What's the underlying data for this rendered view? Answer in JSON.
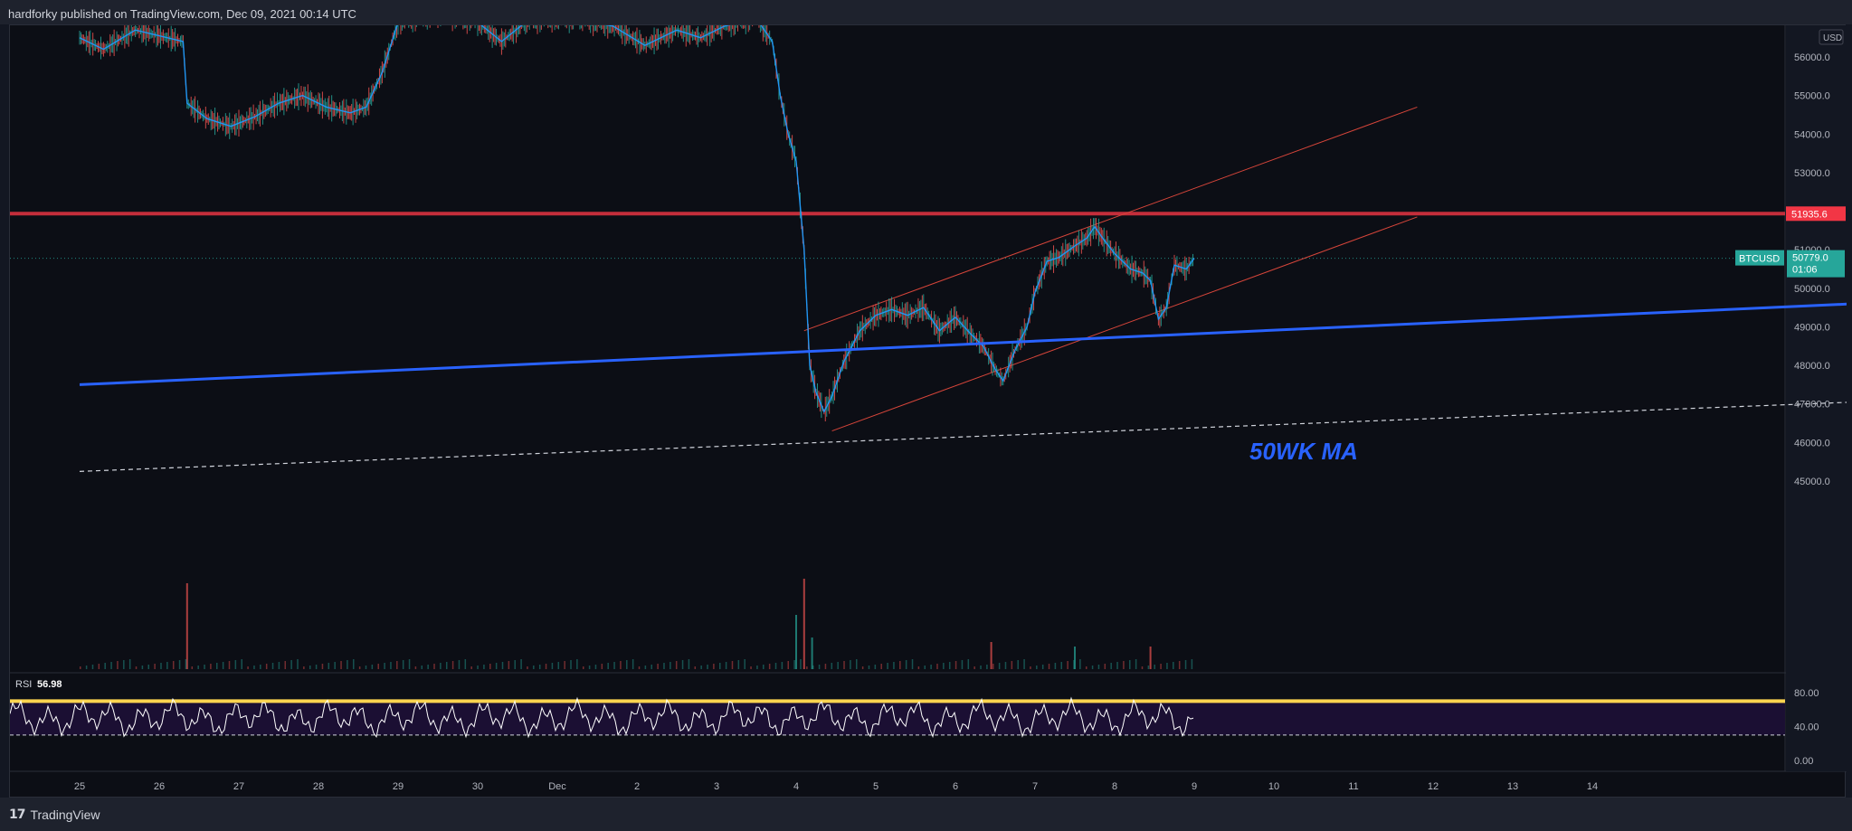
{
  "header": {
    "published": "hardforky published on TradingView.com, Dec 09, 2021 00:14 UTC"
  },
  "footer": {
    "brand_mark": "17",
    "brand_name": "TradingView"
  },
  "colors": {
    "background": "#0c0e15",
    "candle_up": "#26a69a",
    "candle_down": "#ef5350",
    "ma_short": "#2196f3",
    "ma_50wk": "#2962ff",
    "resistance": "#f23645",
    "channel": "#d6453a",
    "rsi_line": "#ffffff",
    "rsi_band": "#1d1036",
    "rsi_overbought": "#ffd54f"
  },
  "chart_data": {
    "type": "line",
    "symbol": "BTCUSD",
    "currency": "USD",
    "price_axis": {
      "ticks": [
        "56000.0",
        "55000.0",
        "54000.0",
        "53000.0",
        "51000.0",
        "50000.0",
        "49000.0",
        "48000.0",
        "47000.0",
        "46000.0",
        "45000.0"
      ],
      "range": [
        44200,
        57000
      ]
    },
    "time_axis": {
      "ticks": [
        "25",
        "26",
        "27",
        "28",
        "29",
        "30",
        "Dec",
        "2",
        "3",
        "4",
        "5",
        "6",
        "7",
        "8",
        "9",
        "10",
        "11",
        "12",
        "13",
        "14"
      ]
    },
    "series": [
      {
        "price_path": [
          {
            "t": 0.0,
            "p": 56500
          },
          {
            "t": 0.3,
            "p": 56200
          },
          {
            "t": 0.7,
            "p": 56700
          },
          {
            "t": 1.3,
            "p": 56400
          },
          {
            "t": 1.35,
            "p": 54800
          },
          {
            "t": 1.6,
            "p": 54400
          },
          {
            "t": 1.9,
            "p": 54200
          },
          {
            "t": 2.2,
            "p": 54450
          },
          {
            "t": 2.5,
            "p": 54800
          },
          {
            "t": 2.8,
            "p": 55000
          },
          {
            "t": 3.1,
            "p": 54700
          },
          {
            "t": 3.4,
            "p": 54550
          },
          {
            "t": 3.6,
            "p": 54700
          },
          {
            "t": 3.8,
            "p": 55600
          },
          {
            "t": 4.0,
            "p": 56900
          },
          {
            "t": 4.5,
            "p": 57100
          },
          {
            "t": 5.0,
            "p": 56900
          },
          {
            "t": 5.3,
            "p": 56400
          },
          {
            "t": 5.6,
            "p": 56900
          },
          {
            "t": 6.0,
            "p": 57000
          },
          {
            "t": 6.3,
            "p": 56950
          },
          {
            "t": 6.7,
            "p": 56800
          },
          {
            "t": 7.1,
            "p": 56300
          },
          {
            "t": 7.5,
            "p": 56700
          },
          {
            "t": 7.8,
            "p": 56500
          },
          {
            "t": 8.1,
            "p": 56800
          },
          {
            "t": 8.5,
            "p": 57000
          },
          {
            "t": 8.7,
            "p": 56400
          },
          {
            "t": 8.8,
            "p": 55000
          },
          {
            "t": 8.9,
            "p": 54000
          },
          {
            "t": 9.0,
            "p": 53300
          },
          {
            "t": 9.1,
            "p": 51000
          },
          {
            "t": 9.17,
            "p": 48000
          },
          {
            "t": 9.25,
            "p": 47300
          },
          {
            "t": 9.35,
            "p": 46800
          },
          {
            "t": 9.45,
            "p": 47200
          },
          {
            "t": 9.6,
            "p": 48100
          },
          {
            "t": 9.8,
            "p": 48900
          },
          {
            "t": 10.0,
            "p": 49300
          },
          {
            "t": 10.2,
            "p": 49450
          },
          {
            "t": 10.4,
            "p": 49300
          },
          {
            "t": 10.6,
            "p": 49500
          },
          {
            "t": 10.8,
            "p": 48900
          },
          {
            "t": 11.0,
            "p": 49250
          },
          {
            "t": 11.2,
            "p": 48800
          },
          {
            "t": 11.35,
            "p": 48500
          },
          {
            "t": 11.5,
            "p": 47900
          },
          {
            "t": 11.6,
            "p": 47600
          },
          {
            "t": 11.75,
            "p": 48400
          },
          {
            "t": 11.9,
            "p": 49000
          },
          {
            "t": 12.0,
            "p": 49900
          },
          {
            "t": 12.15,
            "p": 50700
          },
          {
            "t": 12.3,
            "p": 50800
          },
          {
            "t": 12.5,
            "p": 51100
          },
          {
            "t": 12.65,
            "p": 51300
          },
          {
            "t": 12.75,
            "p": 51600
          },
          {
            "t": 12.85,
            "p": 51300
          },
          {
            "t": 13.0,
            "p": 50900
          },
          {
            "t": 13.2,
            "p": 50500
          },
          {
            "t": 13.35,
            "p": 50400
          },
          {
            "t": 13.45,
            "p": 50200
          },
          {
            "t": 13.55,
            "p": 49200
          },
          {
            "t": 13.65,
            "p": 49500
          },
          {
            "t": 13.75,
            "p": 50600
          },
          {
            "t": 13.9,
            "p": 50500
          },
          {
            "t": 14.0,
            "p": 50779
          }
        ]
      }
    ],
    "lines": {
      "ma_50wk": {
        "label": "50WK MA",
        "from": {
          "t": 0,
          "p": 47500
        },
        "to": {
          "t": 22.3,
          "p": 49600
        }
      },
      "resistance": {
        "value": 51935.6,
        "label": "51935.6"
      },
      "support_dashed": {
        "from": {
          "t": 0,
          "p": 45250
        },
        "to": {
          "t": 22.3,
          "p": 47050
        }
      },
      "channel_upper": {
        "from": {
          "t": 9.1,
          "p": 48900
        },
        "to": {
          "t": 16.8,
          "p": 54700
        }
      },
      "channel_lower": {
        "from": {
          "t": 9.45,
          "p": 46300
        },
        "to": {
          "t": 16.8,
          "p": 51850
        }
      }
    },
    "last_price": {
      "symbol": "BTCUSD",
      "value": "50779.0",
      "countdown": "01:06"
    },
    "rsi": {
      "label": "RSI",
      "value": "56.98",
      "ticks": [
        "80.00",
        "40.00",
        "0.00"
      ],
      "overbought": 70,
      "oversold": 30
    },
    "volume_spikes": [
      {
        "t": 1.35,
        "v": 0.95
      },
      {
        "t": 9.0,
        "v": 0.6
      },
      {
        "t": 9.1,
        "v": 1.0
      },
      {
        "t": 9.2,
        "v": 0.35
      },
      {
        "t": 11.45,
        "v": 0.3
      },
      {
        "t": 12.5,
        "v": 0.25
      },
      {
        "t": 13.45,
        "v": 0.25
      }
    ]
  }
}
